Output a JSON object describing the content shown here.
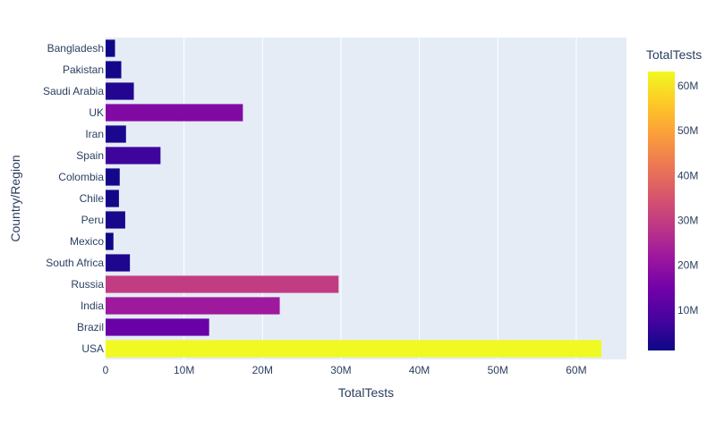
{
  "chart_data": {
    "type": "bar",
    "orientation": "horizontal",
    "categories": [
      "Bangladesh",
      "Pakistan",
      "Saudi Arabia",
      "UK",
      "Iran",
      "Spain",
      "Colombia",
      "Chile",
      "Peru",
      "Mexico",
      "South Africa",
      "Russia",
      "India",
      "Brazil",
      "USA"
    ],
    "values": [
      1200000,
      2000000,
      3600000,
      17500000,
      2600000,
      7000000,
      1800000,
      1700000,
      2500000,
      1000000,
      3100000,
      29700000,
      22200000,
      13200000,
      63200000
    ],
    "xlabel": "TotalTests",
    "ylabel": "Country/Region",
    "xlim": [
      0,
      66400000
    ],
    "xticks": [
      {
        "value": 0,
        "label": "0"
      },
      {
        "value": 10000000,
        "label": "10M"
      },
      {
        "value": 20000000,
        "label": "20M"
      },
      {
        "value": 30000000,
        "label": "30M"
      },
      {
        "value": 40000000,
        "label": "40M"
      },
      {
        "value": 50000000,
        "label": "50M"
      },
      {
        "value": 60000000,
        "label": "60M"
      }
    ],
    "grid": true,
    "plot_background": "#e5ecf6",
    "colorbar": {
      "title": "TotalTests",
      "range": [
        1000000,
        63200000
      ],
      "ticks": [
        {
          "value": 10000000,
          "label": "10M"
        },
        {
          "value": 20000000,
          "label": "20M"
        },
        {
          "value": 30000000,
          "label": "30M"
        },
        {
          "value": 40000000,
          "label": "40M"
        },
        {
          "value": 50000000,
          "label": "50M"
        },
        {
          "value": 60000000,
          "label": "60M"
        }
      ],
      "colorscale": [
        "#0d0887",
        "#46039f",
        "#7201a8",
        "#9c179e",
        "#bd3786",
        "#d8576b",
        "#ed7953",
        "#fb9f3a",
        "#fdca26",
        "#f0f921"
      ]
    }
  }
}
